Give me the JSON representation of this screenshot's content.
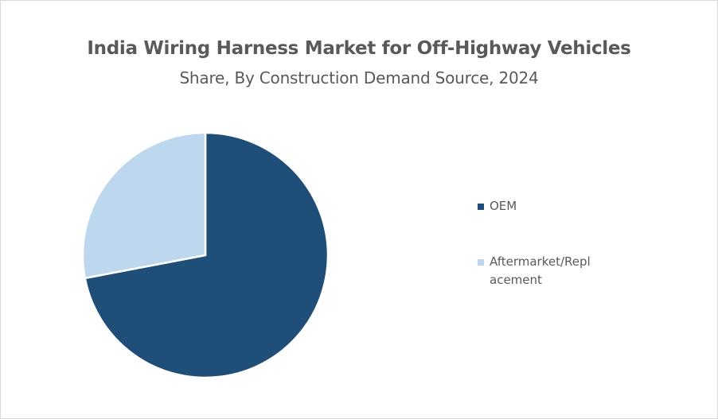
{
  "chart_data": {
    "type": "pie",
    "title": "India Wiring Harness Market for Off-Highway Vehicles",
    "subtitle": "Share, By Construction Demand Source, 2024",
    "categories": [
      "OEM",
      "Aftermarket/Replacement"
    ],
    "values": [
      72,
      28
    ],
    "unit": "%",
    "colors": [
      "#1f4e79",
      "#bdd7ee"
    ],
    "legend_position": "right",
    "start_angle_deg": 0,
    "direction": "clockwise"
  },
  "legend": {
    "items": [
      {
        "label": "OEM",
        "color": "#1f4e79"
      },
      {
        "label": "Aftermarket/Repl\nacement",
        "line1": "Aftermarket/Repl",
        "line2": "acement",
        "color": "#bdd7ee"
      }
    ]
  }
}
